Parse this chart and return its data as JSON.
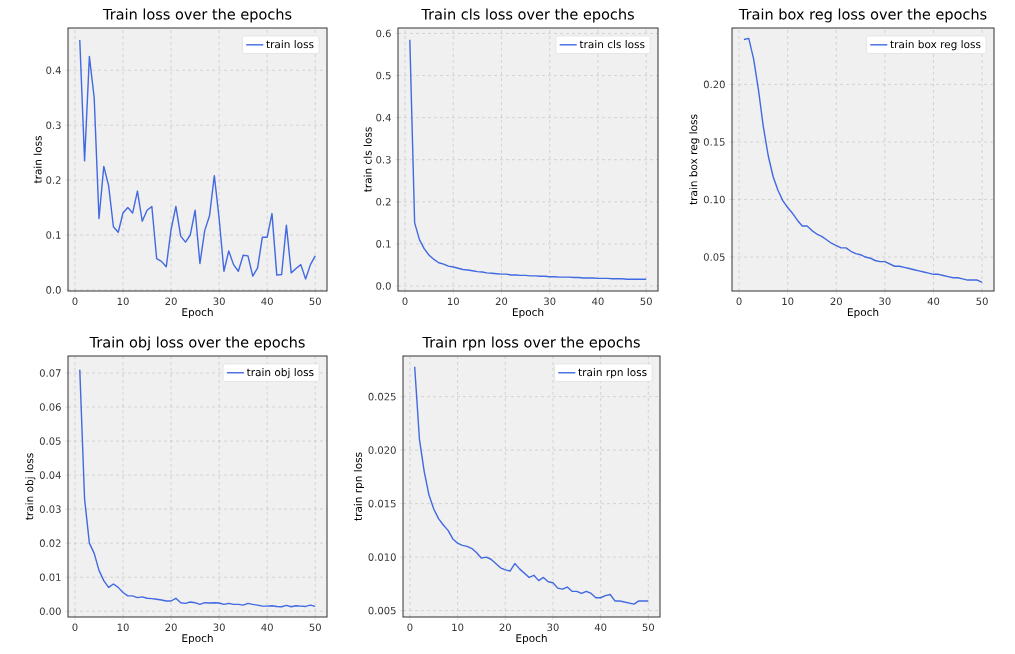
{
  "chart_data": [
    {
      "type": "line",
      "title": "Train loss over the epochs",
      "xlabel": "Epoch",
      "ylabel": "train loss",
      "x": [
        1,
        2,
        3,
        4,
        5,
        6,
        7,
        8,
        9,
        10,
        11,
        12,
        13,
        14,
        15,
        16,
        17,
        18,
        19,
        20,
        21,
        22,
        23,
        24,
        25,
        26,
        27,
        28,
        29,
        30,
        31,
        32,
        33,
        34,
        35,
        36,
        37,
        38,
        39,
        40,
        41,
        42,
        43,
        44,
        45,
        46,
        47,
        48,
        49,
        50
      ],
      "series": [
        {
          "name": "train loss",
          "color": "#4169e1",
          "values": [
            0.455,
            0.235,
            0.425,
            0.35,
            0.13,
            0.225,
            0.19,
            0.115,
            0.105,
            0.14,
            0.15,
            0.14,
            0.18,
            0.125,
            0.145,
            0.152,
            0.057,
            0.052,
            0.042,
            0.11,
            0.152,
            0.098,
            0.087,
            0.1,
            0.145,
            0.048,
            0.108,
            0.135,
            0.208,
            0.13,
            0.034,
            0.071,
            0.046,
            0.034,
            0.063,
            0.062,
            0.025,
            0.04,
            0.096,
            0.096,
            0.139,
            0.027,
            0.028,
            0.118,
            0.031,
            0.039,
            0.046,
            0.02,
            0.046,
            0.062
          ]
        }
      ],
      "xlim": [
        -1.45,
        52.45
      ],
      "ylim": [
        -0.002,
        0.477
      ],
      "xticks": [
        0,
        10,
        20,
        30,
        40,
        50
      ],
      "yticks": [
        {
          "value": 0,
          "label": "0.0"
        },
        {
          "value": 0.1,
          "label": "0.1"
        },
        {
          "value": 0.2,
          "label": "0.2"
        },
        {
          "value": 0.3,
          "label": "0.3"
        },
        {
          "value": 0.4,
          "label": "0.4"
        }
      ],
      "grid": true,
      "legend": "top right"
    },
    {
      "type": "line",
      "title": "Train cls loss over the epochs",
      "xlabel": "Epoch",
      "ylabel": "train cls loss",
      "x": [
        1,
        2,
        3,
        4,
        5,
        6,
        7,
        8,
        9,
        10,
        11,
        12,
        13,
        14,
        15,
        16,
        17,
        18,
        19,
        20,
        21,
        22,
        23,
        24,
        25,
        26,
        27,
        28,
        29,
        30,
        31,
        32,
        33,
        34,
        35,
        36,
        37,
        38,
        39,
        40,
        41,
        42,
        43,
        44,
        45,
        46,
        47,
        48,
        49,
        50
      ],
      "series": [
        {
          "name": "train cls loss",
          "color": "#4169e1",
          "values": [
            0.585,
            0.15,
            0.11,
            0.088,
            0.073,
            0.063,
            0.055,
            0.052,
            0.047,
            0.045,
            0.042,
            0.039,
            0.038,
            0.036,
            0.034,
            0.033,
            0.031,
            0.03,
            0.029,
            0.028,
            0.028,
            0.026,
            0.026,
            0.025,
            0.025,
            0.024,
            0.024,
            0.023,
            0.023,
            0.022,
            0.022,
            0.021,
            0.021,
            0.021,
            0.02,
            0.02,
            0.019,
            0.019,
            0.019,
            0.018,
            0.018,
            0.018,
            0.017,
            0.017,
            0.017,
            0.016,
            0.016,
            0.016,
            0.016,
            0.016
          ]
        }
      ],
      "xlim": [
        -1.45,
        52.45
      ],
      "ylim": [
        -0.012,
        0.613
      ],
      "xticks": [
        0,
        10,
        20,
        30,
        40,
        50
      ],
      "yticks": [
        {
          "value": 0,
          "label": "0.0"
        },
        {
          "value": 0.1,
          "label": "0.1"
        },
        {
          "value": 0.2,
          "label": "0.2"
        },
        {
          "value": 0.3,
          "label": "0.3"
        },
        {
          "value": 0.4,
          "label": "0.4"
        },
        {
          "value": 0.5,
          "label": "0.5"
        },
        {
          "value": 0.6,
          "label": "0.6"
        }
      ],
      "grid": true,
      "legend": "top right"
    },
    {
      "type": "line",
      "title": "Train box reg loss over the epochs",
      "xlabel": "Epoch",
      "ylabel": "train box reg loss",
      "x": [
        1,
        2,
        3,
        4,
        5,
        6,
        7,
        8,
        9,
        10,
        11,
        12,
        13,
        14,
        15,
        16,
        17,
        18,
        19,
        20,
        21,
        22,
        23,
        24,
        25,
        26,
        27,
        28,
        29,
        30,
        31,
        32,
        33,
        34,
        35,
        36,
        37,
        38,
        39,
        40,
        41,
        42,
        43,
        44,
        45,
        46,
        47,
        48,
        49,
        50
      ],
      "series": [
        {
          "name": "train box reg loss",
          "color": "#4169e1",
          "values": [
            0.239,
            0.24,
            0.222,
            0.195,
            0.163,
            0.138,
            0.12,
            0.108,
            0.099,
            0.093,
            0.088,
            0.082,
            0.077,
            0.077,
            0.073,
            0.07,
            0.068,
            0.065,
            0.062,
            0.06,
            0.058,
            0.058,
            0.055,
            0.053,
            0.052,
            0.05,
            0.049,
            0.047,
            0.046,
            0.046,
            0.044,
            0.042,
            0.042,
            0.041,
            0.04,
            0.039,
            0.038,
            0.037,
            0.036,
            0.035,
            0.035,
            0.034,
            0.033,
            0.032,
            0.032,
            0.031,
            0.03,
            0.03,
            0.03,
            0.028
          ]
        }
      ],
      "xlim": [
        -1.45,
        52.45
      ],
      "ylim": [
        0.0205,
        0.249
      ],
      "xticks": [
        0,
        10,
        20,
        30,
        40,
        50
      ],
      "yticks": [
        {
          "value": 0.05,
          "label": "0.05"
        },
        {
          "value": 0.1,
          "label": "0.10"
        },
        {
          "value": 0.15,
          "label": "0.15"
        },
        {
          "value": 0.2,
          "label": "0.20"
        }
      ],
      "grid": true,
      "legend": "top right"
    },
    {
      "type": "line",
      "title": "Train obj loss over the epochs",
      "xlabel": "Epoch",
      "ylabel": "train obj loss",
      "x": [
        1,
        2,
        3,
        4,
        5,
        6,
        7,
        8,
        9,
        10,
        11,
        12,
        13,
        14,
        15,
        16,
        17,
        18,
        19,
        20,
        21,
        22,
        23,
        24,
        25,
        26,
        27,
        28,
        29,
        30,
        31,
        32,
        33,
        34,
        35,
        36,
        37,
        38,
        39,
        40,
        41,
        42,
        43,
        44,
        45,
        46,
        47,
        48,
        49,
        50
      ],
      "series": [
        {
          "name": "train obj loss",
          "color": "#4169e1",
          "values": [
            0.071,
            0.033,
            0.02,
            0.017,
            0.012,
            0.009,
            0.007,
            0.008,
            0.007,
            0.0055,
            0.0045,
            0.0045,
            0.004,
            0.0042,
            0.0038,
            0.0037,
            0.0035,
            0.0033,
            0.003,
            0.003,
            0.0038,
            0.0025,
            0.0023,
            0.0027,
            0.0025,
            0.002,
            0.0025,
            0.0024,
            0.0025,
            0.0024,
            0.002,
            0.0023,
            0.002,
            0.002,
            0.0018,
            0.0023,
            0.002,
            0.0018,
            0.0015,
            0.0015,
            0.0016,
            0.0014,
            0.0013,
            0.0017,
            0.0013,
            0.0016,
            0.0015,
            0.0014,
            0.0018,
            0.0014
          ]
        }
      ],
      "xlim": [
        -1.45,
        52.45
      ],
      "ylim": [
        -0.0017,
        0.075
      ],
      "xticks": [
        0,
        10,
        20,
        30,
        40,
        50
      ],
      "yticks": [
        {
          "value": 0,
          "label": "0.00"
        },
        {
          "value": 0.01,
          "label": "0.01"
        },
        {
          "value": 0.02,
          "label": "0.02"
        },
        {
          "value": 0.03,
          "label": "0.03"
        },
        {
          "value": 0.04,
          "label": "0.04"
        },
        {
          "value": 0.05,
          "label": "0.05"
        },
        {
          "value": 0.06,
          "label": "0.06"
        },
        {
          "value": 0.07,
          "label": "0.07"
        }
      ],
      "grid": true,
      "legend": "top right"
    },
    {
      "type": "line",
      "title": "Train rpn loss over the epochs",
      "xlabel": "Epoch",
      "ylabel": "train rpn loss",
      "x": [
        1,
        2,
        3,
        4,
        5,
        6,
        7,
        8,
        9,
        10,
        11,
        12,
        13,
        14,
        15,
        16,
        17,
        18,
        19,
        20,
        21,
        22,
        23,
        24,
        25,
        26,
        27,
        28,
        29,
        30,
        31,
        32,
        33,
        34,
        35,
        36,
        37,
        38,
        39,
        40,
        41,
        42,
        43,
        44,
        45,
        46,
        47,
        48,
        49,
        50
      ],
      "series": [
        {
          "name": "train rpn loss",
          "color": "#4169e1",
          "values": [
            0.0278,
            0.021,
            0.018,
            0.0158,
            0.0145,
            0.0136,
            0.013,
            0.0125,
            0.0117,
            0.0113,
            0.0111,
            0.011,
            0.0108,
            0.0104,
            0.0099,
            0.01,
            0.0098,
            0.0094,
            0.009,
            0.0088,
            0.0087,
            0.0094,
            0.0089,
            0.0085,
            0.0081,
            0.0083,
            0.0078,
            0.0081,
            0.0077,
            0.0076,
            0.0071,
            0.007,
            0.0072,
            0.0068,
            0.0068,
            0.0066,
            0.0068,
            0.0066,
            0.0062,
            0.0062,
            0.0064,
            0.0065,
            0.0059,
            0.0059,
            0.0058,
            0.0057,
            0.0056,
            0.0059,
            0.0059,
            0.0059
          ]
        }
      ],
      "xlim": [
        -1.45,
        52.45
      ],
      "ylim": [
        0.0044,
        0.0288
      ],
      "xticks": [
        0,
        10,
        20,
        30,
        40,
        50
      ],
      "yticks": [
        {
          "value": 0.005,
          "label": "0.005"
        },
        {
          "value": 0.01,
          "label": "0.010"
        },
        {
          "value": 0.015,
          "label": "0.015"
        },
        {
          "value": 0.02,
          "label": "0.020"
        },
        {
          "value": 0.025,
          "label": "0.025"
        }
      ],
      "grid": true,
      "legend": "top right"
    }
  ]
}
